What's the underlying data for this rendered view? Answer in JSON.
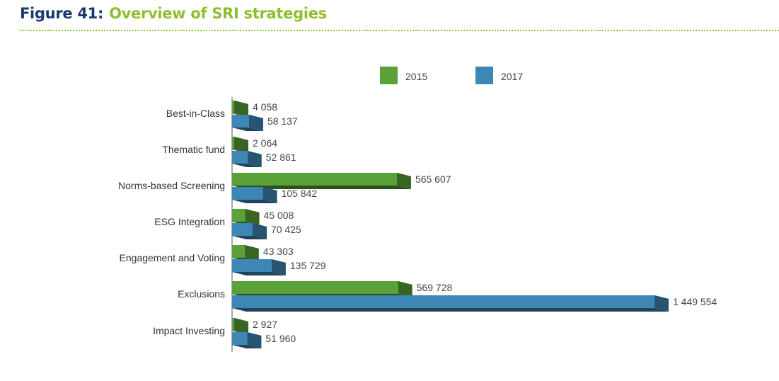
{
  "header": {
    "figure_number": "Figure 41:",
    "title": "Overview of SRI strategies"
  },
  "chart_data": {
    "type": "bar",
    "orientation": "horizontal",
    "style": "3d",
    "title": "Overview of SRI strategies",
    "categories": [
      "Best-in-Class",
      "Thematic fund",
      "Norms-based Screening",
      "ESG Integration",
      "Engagement and Voting",
      "Exclusions",
      "Impact Investing"
    ],
    "series": [
      {
        "name": "2015",
        "color": "#5aa13a",
        "values": [
          4058,
          2064,
          565607,
          45008,
          43303,
          569728,
          2927
        ],
        "labels": [
          "4 058",
          "2 064",
          "565 607",
          "45 008",
          "43 303",
          "569 728",
          "2 927"
        ]
      },
      {
        "name": "2017",
        "color": "#3d87b7",
        "values": [
          58137,
          52861,
          105842,
          70425,
          135729,
          1449554,
          51960
        ],
        "labels": [
          "58 137",
          "52 861",
          "105 842",
          "70 425",
          "135 729",
          "1 449 554",
          "51 960"
        ]
      }
    ],
    "xlim": [
      0,
      1449554
    ],
    "grid": false,
    "legend_position": "top"
  }
}
